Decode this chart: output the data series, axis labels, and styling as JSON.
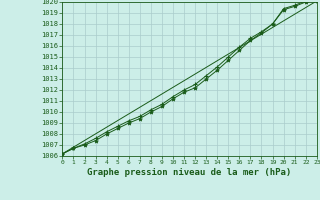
{
  "title": "Graphe pression niveau de la mer (hPa)",
  "bg_color": "#cceee8",
  "grid_color": "#aacccc",
  "line_color": "#1a5c1a",
  "x_min": 0,
  "x_max": 23,
  "y_min": 1006,
  "y_max": 1020,
  "x_ticks": [
    0,
    1,
    2,
    3,
    4,
    5,
    6,
    7,
    8,
    9,
    10,
    11,
    12,
    13,
    14,
    15,
    16,
    17,
    18,
    19,
    20,
    21,
    22,
    23
  ],
  "y_ticks": [
    1006,
    1007,
    1008,
    1009,
    1010,
    1011,
    1012,
    1013,
    1014,
    1015,
    1016,
    1017,
    1018,
    1019,
    1020
  ],
  "series1_x": [
    0,
    1,
    2,
    3,
    4,
    5,
    6,
    7,
    8,
    9,
    10,
    11,
    12,
    13,
    14,
    15,
    16,
    17,
    18,
    19,
    20,
    21,
    22,
    23
  ],
  "series1_y": [
    1006.2,
    1006.7,
    1007.1,
    1007.6,
    1008.2,
    1008.7,
    1009.2,
    1009.6,
    1010.2,
    1010.7,
    1011.4,
    1012.0,
    1012.5,
    1013.3,
    1014.1,
    1015.0,
    1015.9,
    1016.7,
    1017.3,
    1018.0,
    1019.4,
    1019.7,
    1020.1,
    1020.2
  ],
  "series2_x": [
    0,
    1,
    2,
    3,
    4,
    5,
    6,
    7,
    8,
    9,
    10,
    11,
    12,
    13,
    14,
    15,
    16,
    17,
    18,
    19,
    20,
    21,
    22,
    23
  ],
  "series2_y": [
    1006.2,
    1006.7,
    1007.0,
    1007.4,
    1008.0,
    1008.5,
    1009.0,
    1009.4,
    1010.0,
    1010.5,
    1011.2,
    1011.8,
    1012.2,
    1013.0,
    1013.8,
    1014.7,
    1015.6,
    1016.5,
    1017.2,
    1018.0,
    1019.3,
    1019.6,
    1020.0,
    1020.1
  ],
  "series3_x": [
    0,
    23
  ],
  "series3_y": [
    1006.2,
    1020.1
  ]
}
